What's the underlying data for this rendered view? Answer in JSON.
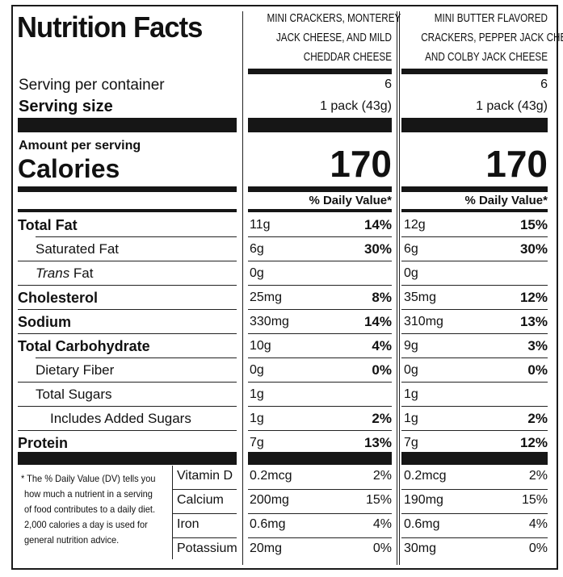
{
  "header": {
    "title": "Nutrition Facts",
    "products": [
      {
        "name_lines": [
          "MINI CRACKERS, MONTEREY",
          "JACK CHEESE, AND MILD",
          "CHEDDAR CHEESE"
        ]
      },
      {
        "name_lines": [
          "MINI BUTTER FLAVORED",
          "CRACKERS, PEPPER JACK CHEESE,",
          "AND COLBY JACK CHEESE"
        ]
      }
    ]
  },
  "serving": {
    "per_container_label": "Serving per container",
    "size_label": "Serving size",
    "per_container": [
      "6",
      "6"
    ],
    "size": [
      "1 pack (43g)",
      "1 pack (43g)"
    ]
  },
  "calories": {
    "amount_label": "Amount per serving",
    "label": "Calories",
    "values": [
      "170",
      "170"
    ]
  },
  "dv_header": "% Daily Value*",
  "nutrients": [
    {
      "label": "Total Fat",
      "bold": true,
      "indent": 0,
      "values": [
        "11g",
        "12g"
      ],
      "dv": [
        "14%",
        "15%"
      ]
    },
    {
      "label": "Saturated Fat",
      "bold": false,
      "indent": 1,
      "values": [
        "6g",
        "6g"
      ],
      "dv": [
        "30%",
        "30%"
      ]
    },
    {
      "label_italic": "Trans",
      "label": " Fat",
      "bold": false,
      "indent": 1,
      "values": [
        "0g",
        "0g"
      ],
      "dv": [
        "",
        ""
      ]
    },
    {
      "label": "Cholesterol",
      "bold": true,
      "indent": 0,
      "values": [
        "25mg",
        "35mg"
      ],
      "dv": [
        "8%",
        "12%"
      ]
    },
    {
      "label": "Sodium",
      "bold": true,
      "indent": 0,
      "values": [
        "330mg",
        "310mg"
      ],
      "dv": [
        "14%",
        "13%"
      ]
    },
    {
      "label": "Total Carbohydrate",
      "bold": true,
      "indent": 0,
      "values": [
        "10g",
        "9g"
      ],
      "dv": [
        "4%",
        "3%"
      ]
    },
    {
      "label": "Dietary Fiber",
      "bold": false,
      "indent": 1,
      "values": [
        "0g",
        "0g"
      ],
      "dv": [
        "0%",
        "0%"
      ]
    },
    {
      "label": "Total Sugars",
      "bold": false,
      "indent": 1,
      "values": [
        "1g",
        "1g"
      ],
      "dv": [
        "",
        ""
      ]
    },
    {
      "label": "Includes Added Sugars",
      "bold": false,
      "indent": 2,
      "values": [
        "1g",
        "1g"
      ],
      "dv": [
        "2%",
        "2%"
      ]
    },
    {
      "label": "Protein",
      "bold": true,
      "indent": 0,
      "values": [
        "7g",
        "7g"
      ],
      "dv": [
        "13%",
        "12%"
      ]
    }
  ],
  "footnote_lines": [
    "* The % Daily Value (DV) tells you",
    "how much a nutrient in a serving",
    "of food contributes to a daily diet.",
    "2,000 calories a day is used for",
    "general nutrition advice."
  ],
  "vitamins": [
    {
      "label": "Vitamin D",
      "values": [
        "0.2mcg",
        "0.2mcg"
      ],
      "dv": [
        "2%",
        "2%"
      ]
    },
    {
      "label": "Calcium",
      "values": [
        "200mg",
        "190mg"
      ],
      "dv": [
        "15%",
        "15%"
      ]
    },
    {
      "label": "Iron",
      "values": [
        "0.6mg",
        "0.6mg"
      ],
      "dv": [
        "4%",
        "4%"
      ]
    },
    {
      "label": "Potassium",
      "values": [
        "20mg",
        "30mg"
      ],
      "dv": [
        "0%",
        "0%"
      ]
    }
  ]
}
